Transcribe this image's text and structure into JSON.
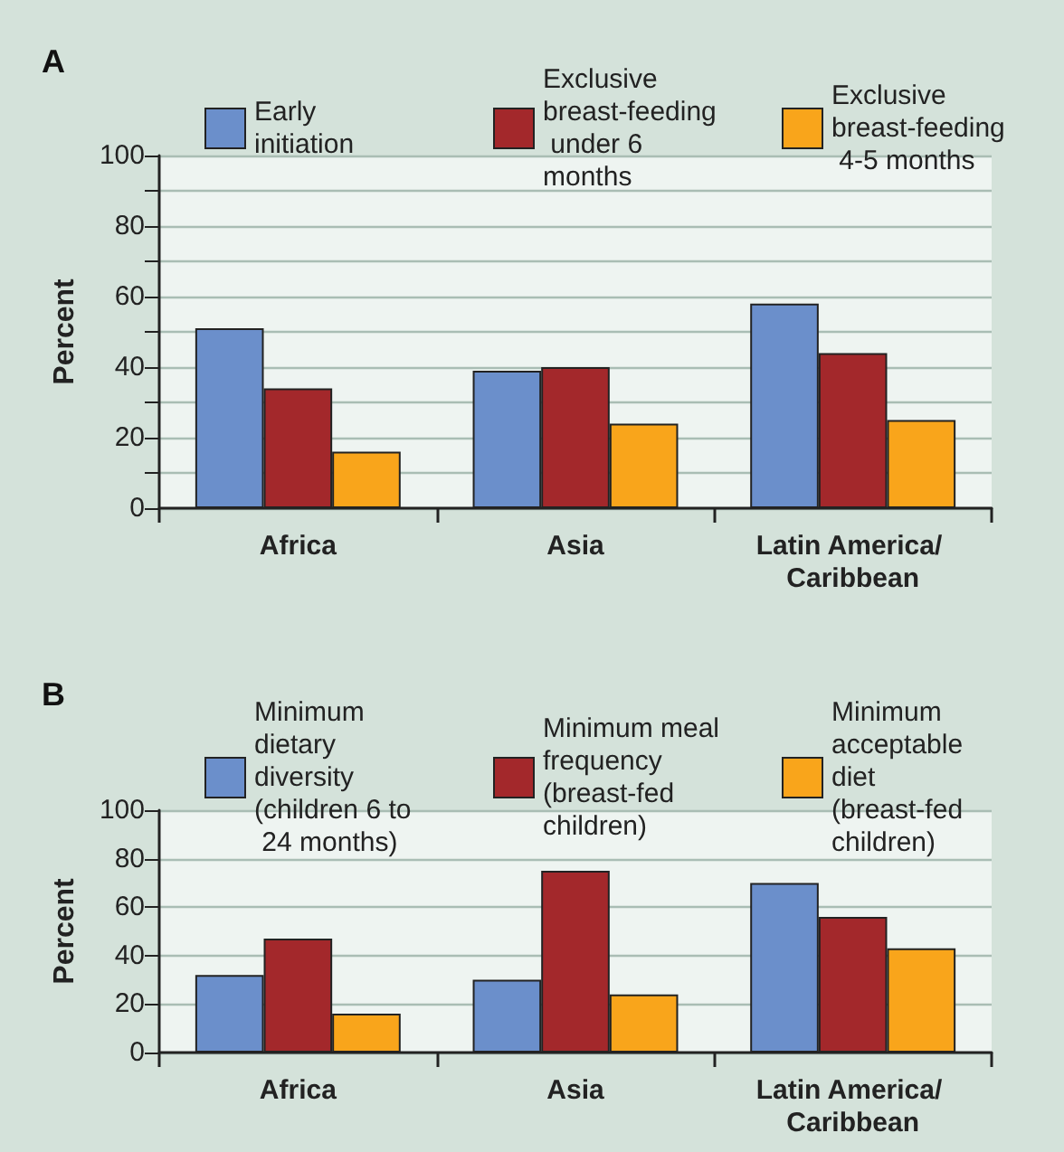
{
  "chart_data": [
    {
      "type": "bar",
      "title": "A",
      "ylabel": "Percent",
      "categories": [
        "Africa",
        "Asia",
        "Latin America/ Caribbean"
      ],
      "series": [
        {
          "name": "Early initiation",
          "color": "#6b8fcb",
          "values": [
            51,
            39,
            58
          ]
        },
        {
          "name": "Exclusive breast-feeding under 6 months",
          "color": "#a3282b",
          "values": [
            34,
            40,
            44
          ]
        },
        {
          "name": "Exclusive breast-feeding 4-5 months",
          "color": "#f9a51b",
          "values": [
            16,
            24,
            25
          ]
        }
      ],
      "ylim": [
        0,
        100
      ],
      "yticks": [
        0,
        {
          "value": 10,
          "label": null
        },
        20,
        {
          "value": 30,
          "label": null
        },
        40,
        {
          "value": 50,
          "label": null
        },
        60,
        {
          "value": 70,
          "label": null
        },
        80,
        {
          "value": 90,
          "label": null
        },
        100
      ],
      "grid": "y",
      "legend": "top"
    },
    {
      "type": "bar",
      "title": "B",
      "ylabel": "Percent",
      "categories": [
        "Africa",
        "Asia",
        "Latin America/ Caribbean"
      ],
      "series": [
        {
          "name": "Minimum dietary diversity (children 6 to 24 months)",
          "color": "#6b8fcb",
          "values": [
            32,
            30,
            70
          ]
        },
        {
          "name": "Minimum meal frequency (breast-fed children)",
          "color": "#a3282b",
          "values": [
            47,
            75,
            56
          ]
        },
        {
          "name": "Minimum acceptable diet (breast-fed children)",
          "color": "#f9a51b",
          "values": [
            16,
            24,
            43
          ]
        }
      ],
      "ylim": [
        0,
        100
      ],
      "yticks": [
        0,
        20,
        40,
        60,
        80,
        100
      ],
      "grid": "y",
      "legend": "top"
    }
  ]
}
